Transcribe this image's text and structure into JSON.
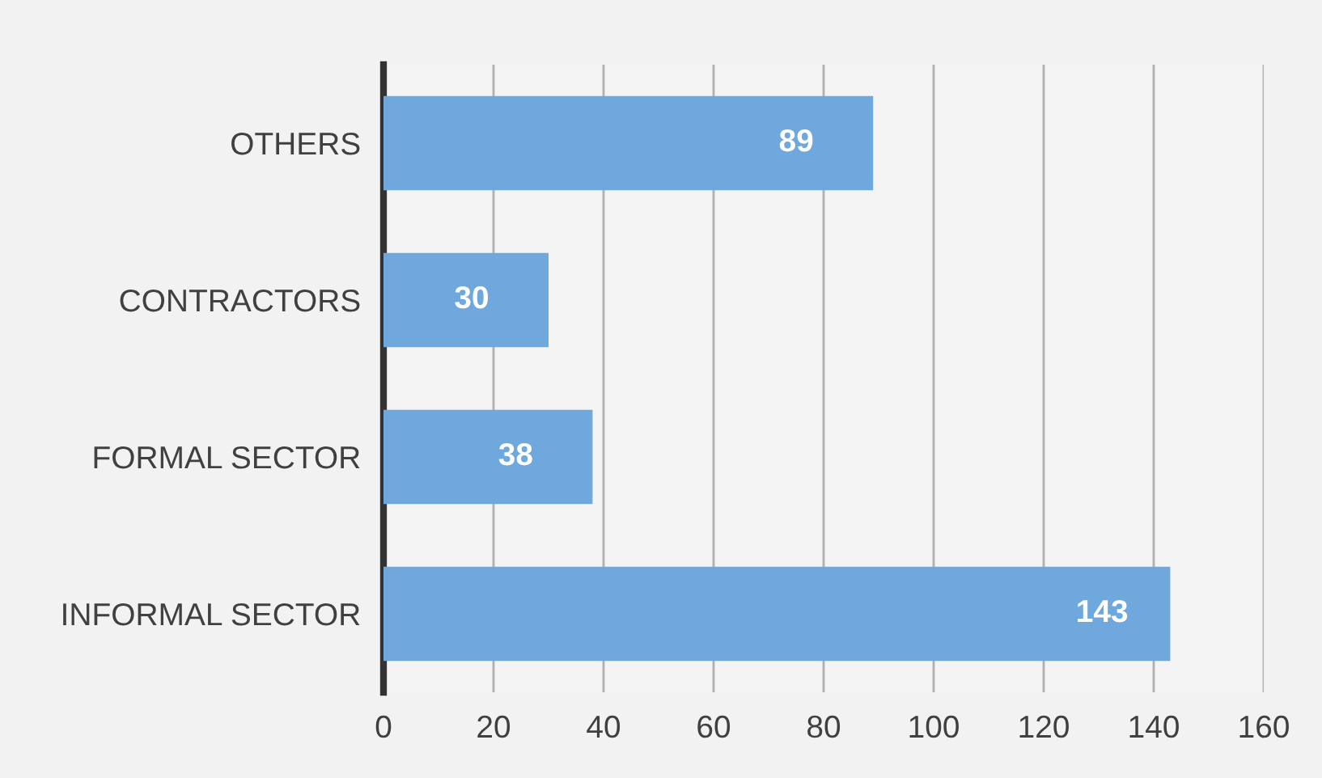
{
  "chart_data": {
    "type": "bar",
    "orientation": "horizontal",
    "categories": [
      "OTHERS",
      "CONTRACTORS",
      "FORMAL SECTOR",
      "INFORMAL SECTOR"
    ],
    "values": [
      89,
      30,
      38,
      143
    ],
    "color": "#6fa8dc",
    "xlim": [
      0,
      160
    ],
    "xticks": [
      0,
      20,
      40,
      60,
      80,
      100,
      120,
      140,
      160
    ],
    "grid": "x",
    "data_labels": true
  }
}
